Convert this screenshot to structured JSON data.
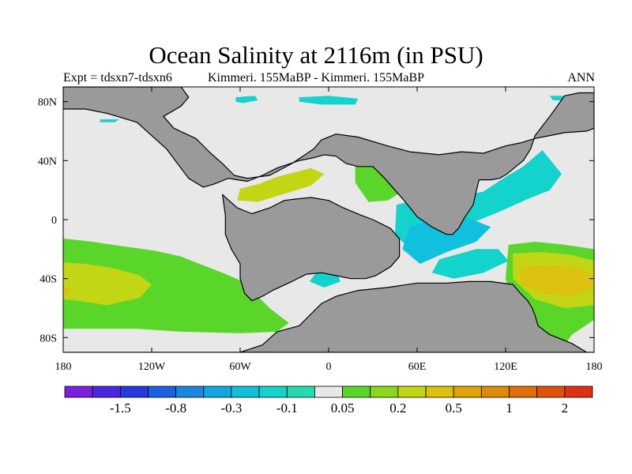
{
  "header": {
    "title": "Ocean Salinity at 2116m (in PSU)",
    "expt": "Expt = tdsxn7-tdsxn6",
    "runs": "Kimmeri. 155MaBP - Kimmeri. 155MaBP",
    "season": "ANN"
  },
  "chart_data": {
    "type": "heatmap",
    "title": "Ocean Salinity at 2116m (in PSU)",
    "projection": "cylindrical-equidistant",
    "xlim": [
      -180,
      180
    ],
    "ylim": [
      -90,
      90
    ],
    "x_ticks": [
      {
        "value": -180,
        "label": "180"
      },
      {
        "value": -120,
        "label": "120W"
      },
      {
        "value": -60,
        "label": "60W"
      },
      {
        "value": 0,
        "label": "0"
      },
      {
        "value": 60,
        "label": "60E"
      },
      {
        "value": 120,
        "label": "120E"
      },
      {
        "value": 180,
        "label": "180"
      }
    ],
    "y_ticks": [
      {
        "value": 80,
        "label": "80N"
      },
      {
        "value": 40,
        "label": "40N"
      },
      {
        "value": 0,
        "label": "0"
      },
      {
        "value": -40,
        "label": "40S"
      },
      {
        "value": -80,
        "label": "80S"
      }
    ],
    "land_color": "#9a9a9a",
    "colorbar": {
      "colors": [
        "#7a1fe0",
        "#4a26e0",
        "#2838e0",
        "#1a62e0",
        "#1a86e0",
        "#12a6e0",
        "#10c0dc",
        "#14d2cc",
        "#22dcb0",
        "#e8e8e8",
        "#5ad62a",
        "#8ed61a",
        "#c2d616",
        "#dcc20e",
        "#e0a40a",
        "#e08a0a",
        "#e06e0a",
        "#e0520a",
        "#e03010"
      ],
      "labels": [
        {
          "after_box": 2,
          "text": "-1.5"
        },
        {
          "after_box": 4,
          "text": "-0.8"
        },
        {
          "after_box": 6,
          "text": "-0.3"
        },
        {
          "after_box": 8,
          "text": "-0.1"
        },
        {
          "after_box": 10,
          "text": "0.05"
        },
        {
          "after_box": 12,
          "text": "0.2"
        },
        {
          "after_box": 14,
          "text": "0.5"
        },
        {
          "after_box": 16,
          "text": "1"
        },
        {
          "after_box": 18,
          "text": "2"
        }
      ]
    },
    "regions": [
      {
        "name": "pacific-fresh-band",
        "color": "#5ad62a",
        "lon": [
          -180,
          -178,
          -160,
          -140,
          -118,
          -100,
          -85,
          -72,
          -58,
          -40,
          -27,
          -35,
          -60,
          -100,
          -130,
          -160,
          -180
        ],
        "lat": [
          -13,
          -13,
          -15,
          -18,
          -21,
          -25,
          -31,
          -36,
          -42,
          -60,
          -70,
          -76,
          -77,
          -76,
          -74,
          -74,
          -74
        ]
      },
      {
        "name": "pacific-core",
        "color": "#c2d616",
        "lon": [
          -180,
          -165,
          -145,
          -128,
          -120,
          -128,
          -150,
          -170,
          -180
        ],
        "lat": [
          -29,
          -30,
          -33,
          -38,
          -44,
          -53,
          -58,
          -55,
          -54
        ]
      },
      {
        "name": "pacific-center",
        "color": "#dcc20e",
        "lon": [
          -180,
          -176,
          -176,
          -180
        ],
        "lat": [
          -46,
          -45,
          -50,
          -51
        ]
      },
      {
        "name": "tethys-gulf",
        "color": "#c2d616",
        "lon": [
          -60,
          -48,
          -35,
          -12,
          -3,
          -12,
          -35,
          -48,
          -62
        ],
        "lat": [
          21,
          24,
          29,
          35,
          31,
          23,
          16,
          12,
          13
        ]
      },
      {
        "name": "tethys-east",
        "color": "#5ad62a",
        "lon": [
          18,
          35,
          48,
          60,
          53,
          40,
          27,
          18
        ],
        "lat": [
          40,
          42,
          38,
          34,
          21,
          13,
          12,
          25
        ]
      },
      {
        "name": "central-atlantic-cyan",
        "color": "#14d2cc",
        "lon": [
          46,
          65,
          85,
          105,
          120,
          132,
          140,
          145,
          158,
          150,
          135,
          115,
          90,
          70,
          55,
          45
        ],
        "lat": [
          10,
          15,
          15,
          19,
          29,
          36,
          43,
          47,
          31,
          20,
          14,
          5,
          -5,
          -12,
          -20,
          -10
        ]
      },
      {
        "name": "central-atlantic-blue",
        "color": "#10c0dc",
        "lon": [
          55,
          72,
          95,
          110,
          100,
          80,
          62,
          50
        ],
        "lat": [
          -5,
          0,
          1,
          -5,
          -15,
          -22,
          -30,
          -20
        ]
      },
      {
        "name": "southeast-rim",
        "color": "#14d2cc",
        "lon": [
          75,
          100,
          115,
          122,
          105,
          85,
          70
        ],
        "lat": [
          -27,
          -20,
          -20,
          -28,
          -36,
          -40,
          -36
        ]
      },
      {
        "name": "sw-fresh-cyan",
        "color": "#14d2cc",
        "lon": [
          -7,
          5,
          8,
          -3,
          -13
        ],
        "lat": [
          -34,
          -34,
          -42,
          -46,
          -42
        ]
      },
      {
        "name": "se-salty",
        "color": "#5ad62a",
        "lon": [
          122,
          140,
          160,
          180,
          180,
          165,
          160,
          146,
          130,
          120
        ],
        "lat": [
          -17,
          -15,
          -17,
          -20,
          -68,
          -78,
          -85,
          -84,
          -75,
          -40
        ]
      },
      {
        "name": "se-salty-core",
        "color": "#c2d616",
        "lon": [
          125,
          145,
          165,
          180,
          180,
          160,
          140,
          125
        ],
        "lat": [
          -23,
          -22,
          -24,
          -28,
          -58,
          -60,
          -54,
          -40
        ]
      },
      {
        "name": "se-salty-max",
        "color": "#dcc20e",
        "lon": [
          130,
          150,
          170,
          180,
          180,
          165,
          145,
          130
        ],
        "lat": [
          -32,
          -31,
          -33,
          -38,
          -46,
          -52,
          -50,
          -44
        ]
      },
      {
        "name": "arctic-1",
        "color": "#14d2cc",
        "lon": [
          -148,
          -138,
          -130,
          -140,
          -150
        ],
        "lat": [
          84,
          84,
          82,
          81,
          81
        ]
      },
      {
        "name": "arctic-2",
        "color": "#14d2cc",
        "lon": [
          -63,
          -50,
          -48,
          -58,
          -63
        ],
        "lat": [
          83,
          84,
          81,
          79,
          80
        ]
      },
      {
        "name": "arctic-3",
        "color": "#14d2cc",
        "lon": [
          -20,
          0,
          20,
          18,
          -5,
          -20
        ],
        "lat": [
          83,
          84,
          82,
          78,
          78,
          80
        ]
      },
      {
        "name": "arctic-4",
        "color": "#14d2cc",
        "lon": [
          150,
          165,
          175,
          172,
          152
        ],
        "lat": [
          84,
          84,
          82,
          80,
          81
        ]
      },
      {
        "name": "arctic-5",
        "color": "#14d2cc",
        "lon": [
          -155,
          -142,
          -145,
          -155
        ],
        "lat": [
          68,
          68,
          66,
          66
        ]
      }
    ],
    "land": [
      {
        "name": "north-america-eurasia",
        "lon": [
          -180,
          -180,
          -160,
          -150,
          -130,
          -115,
          -100,
          -95,
          -100,
          -112,
          -105,
          -90,
          -80,
          -72,
          -64,
          -55,
          -40,
          -25,
          -10,
          -5,
          5,
          20,
          40,
          55,
          75,
          90,
          105,
          120,
          130,
          140,
          150,
          160,
          175,
          180,
          180,
          170,
          160,
          150,
          140,
          137,
          132,
          127,
          121,
          116,
          110,
          102,
          100,
          98,
          92,
          88,
          84,
          80,
          70,
          60,
          52,
          45,
          38,
          30,
          20,
          12,
          5,
          -3,
          -10,
          -20,
          -35,
          -45,
          -55,
          -62,
          -68,
          -78,
          -85,
          -95,
          -110,
          -130,
          -150,
          -165
        ],
        "lat": [
          75,
          90,
          90,
          90,
          90,
          90,
          90,
          83,
          77,
          70,
          62,
          55,
          45,
          38,
          30,
          28,
          30,
          38,
          48,
          54,
          58,
          56,
          50,
          46,
          44,
          46,
          45,
          50,
          52,
          55,
          57,
          59,
          60,
          62,
          86,
          86,
          84,
          70,
          57,
          48,
          40,
          36,
          31,
          28,
          27,
          27,
          19,
          10,
          1,
          -6,
          -10,
          -10,
          -5,
          2,
          12,
          20,
          28,
          36,
          36,
          38,
          43,
          44,
          42,
          40,
          35,
          30,
          26,
          27,
          28,
          24,
          22,
          28,
          48,
          66,
          72,
          75
        ]
      },
      {
        "name": "gondwana-west",
        "lon": [
          -72,
          -62,
          -52,
          -40,
          -30,
          -22,
          -12,
          0,
          10,
          22,
          30,
          42,
          48,
          48,
          42,
          32,
          25,
          15,
          5,
          -5,
          -15,
          -25,
          -38,
          -45,
          -52,
          -57,
          -60,
          -60,
          -66,
          -70,
          -70
        ],
        "lat": [
          17,
          8,
          4,
          8,
          13,
          14,
          15,
          13,
          8,
          3,
          0,
          -6,
          -13,
          -25,
          -32,
          -38,
          -40,
          -40,
          -38,
          -36,
          -37,
          -42,
          -48,
          -52,
          -55,
          -50,
          -40,
          -30,
          -20,
          -10,
          3
        ]
      },
      {
        "name": "antarctica-australia",
        "lon": [
          -180,
          -150,
          -120,
          -90,
          -60,
          -45,
          -35,
          -20,
          -12,
          -5,
          5,
          20,
          40,
          60,
          80,
          95,
          110,
          125,
          130,
          135,
          138,
          140,
          142,
          150,
          160,
          165,
          175,
          180,
          180
        ],
        "lat": [
          -90,
          -90,
          -90,
          -90,
          -90,
          -85,
          -76,
          -72,
          -64,
          -57,
          -52,
          -48,
          -46,
          -43,
          -43,
          -42,
          -42,
          -44,
          -50,
          -55,
          -60,
          -65,
          -72,
          -78,
          -82,
          -84,
          -90,
          -90,
          -90
        ]
      }
    ]
  }
}
